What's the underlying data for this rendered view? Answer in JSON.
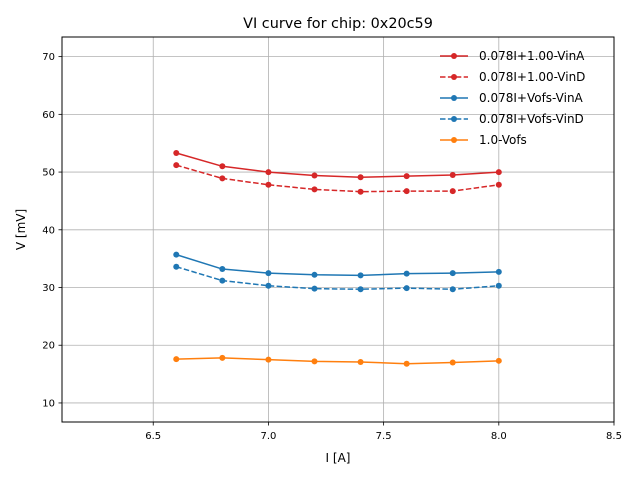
{
  "chart_data": {
    "type": "line",
    "title": "VI curve for chip: 0x20c59",
    "xlabel": "I [A]",
    "ylabel": "V [mV]",
    "xlim": [
      6.104,
      8.5
    ],
    "ylim": [
      6.7,
      73.4
    ],
    "xticks": [
      6.5,
      7.0,
      7.5,
      8.0,
      8.5
    ],
    "xtick_labels": [
      "6.5",
      "7.0",
      "7.5",
      "8.0",
      "8.5"
    ],
    "yticks": [
      10,
      20,
      30,
      40,
      50,
      60,
      70
    ],
    "ytick_labels": [
      "10",
      "20",
      "30",
      "40",
      "50",
      "60",
      "70"
    ],
    "grid": true,
    "legend_position": "top-right",
    "x": [
      6.6,
      6.8,
      7.0,
      7.2,
      7.4,
      7.6,
      7.8,
      8.0
    ],
    "series": [
      {
        "name": "0.078I+1.00-VinA",
        "color": "#d62728",
        "dashed": false,
        "values": [
          53.3,
          51.0,
          50.0,
          49.4,
          49.1,
          49.3,
          49.5,
          50.0
        ]
      },
      {
        "name": "0.078I+1.00-VinD",
        "color": "#d62728",
        "dashed": true,
        "values": [
          51.2,
          48.9,
          47.8,
          47.0,
          46.6,
          46.7,
          46.7,
          47.8
        ]
      },
      {
        "name": "0.078I+Vofs-VinA",
        "color": "#1f77b4",
        "dashed": false,
        "values": [
          35.7,
          33.2,
          32.5,
          32.2,
          32.1,
          32.4,
          32.5,
          32.7
        ]
      },
      {
        "name": "0.078I+Vofs-VinD",
        "color": "#1f77b4",
        "dashed": true,
        "values": [
          33.6,
          31.2,
          30.3,
          29.8,
          29.7,
          29.9,
          29.7,
          30.3
        ]
      },
      {
        "name": "1.0-Vofs",
        "color": "#ff7f0e",
        "dashed": false,
        "values": [
          17.6,
          17.8,
          17.5,
          17.2,
          17.1,
          16.8,
          17.0,
          17.3
        ]
      }
    ]
  }
}
